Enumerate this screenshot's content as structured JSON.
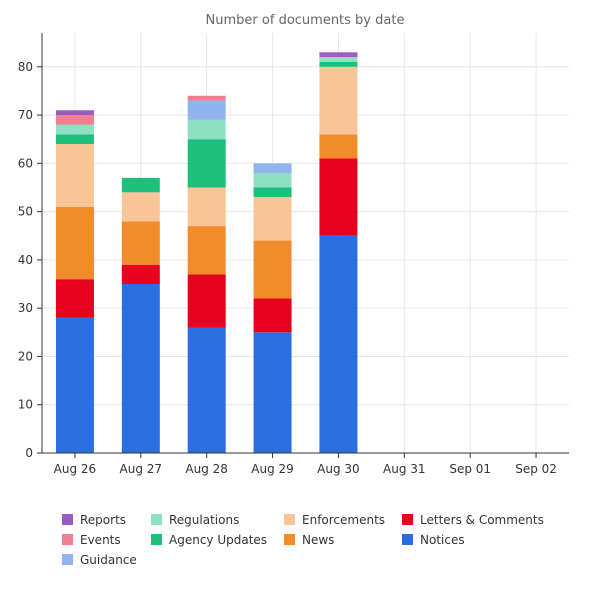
{
  "chart_data": {
    "type": "bar",
    "stacked": true,
    "title": "Number of documents by date",
    "xlabel": "",
    "ylabel": "",
    "categories": [
      "Aug 26",
      "Aug 27",
      "Aug 28",
      "Aug 29",
      "Aug 30",
      "Aug 31",
      "Sep 01",
      "Sep 02"
    ],
    "ylim": [
      0,
      87
    ],
    "yticks": [
      0,
      10,
      20,
      30,
      40,
      50,
      60,
      70,
      80
    ],
    "grid": true,
    "legend_position": "bottom",
    "series": [
      {
        "name": "Notices",
        "color": "#2a6ee0",
        "values": [
          28,
          35,
          26,
          25,
          45,
          0,
          0,
          0
        ]
      },
      {
        "name": "Letters & Comments",
        "color": "#e8001f",
        "values": [
          8,
          4,
          11,
          7,
          16,
          0,
          0,
          0
        ]
      },
      {
        "name": "News",
        "color": "#f28b2b",
        "values": [
          15,
          9,
          10,
          12,
          5,
          0,
          0,
          0
        ]
      },
      {
        "name": "Enforcements",
        "color": "#f9c596",
        "values": [
          13,
          6,
          8,
          9,
          14,
          0,
          0,
          0
        ]
      },
      {
        "name": "Agency Updates",
        "color": "#1dbf7a",
        "values": [
          2,
          3,
          10,
          2,
          1,
          0,
          0,
          0
        ]
      },
      {
        "name": "Regulations",
        "color": "#8ee0c2",
        "values": [
          2,
          0,
          4,
          3,
          1,
          0,
          0,
          0
        ]
      },
      {
        "name": "Guidance",
        "color": "#93b3ee",
        "values": [
          0,
          0,
          4,
          2,
          0,
          0,
          0,
          0
        ]
      },
      {
        "name": "Events",
        "color": "#f08090",
        "values": [
          2,
          0,
          1,
          0,
          0,
          0,
          0,
          0
        ]
      },
      {
        "name": "Reports",
        "color": "#9a5cc4",
        "values": [
          1,
          0,
          0,
          0,
          1,
          0,
          0,
          0
        ]
      }
    ],
    "legend_order": [
      "Reports",
      "Regulations",
      "Enforcements",
      "Letters & Comments",
      "Events",
      "Agency Updates",
      "News",
      "Notices",
      "Guidance"
    ]
  }
}
